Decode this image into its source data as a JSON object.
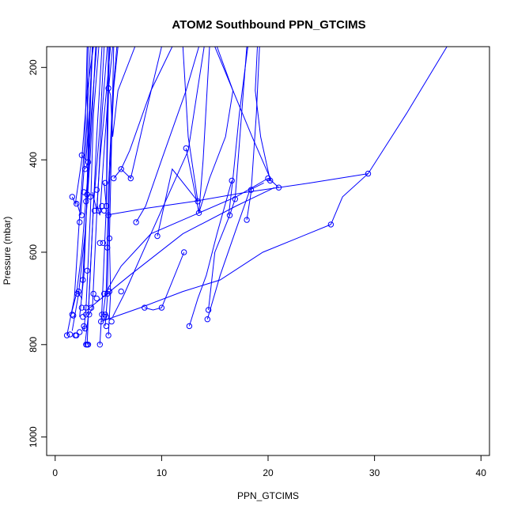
{
  "chart_data": {
    "type": "line",
    "title": "ATOM2 Southbound PPN_GTCIMS",
    "xlabel": "PPN_GTCIMS",
    "ylabel": "Pressure (mbar)",
    "xlim": [
      -0.8,
      40.8
    ],
    "ylim": [
      1040,
      155
    ],
    "y_reversed": true,
    "grid": false,
    "x_ticks": [
      {
        "value": 0,
        "label": "0"
      },
      {
        "value": 10,
        "label": "10"
      },
      {
        "value": 20,
        "label": "20"
      },
      {
        "value": 30,
        "label": "30"
      },
      {
        "value": 40,
        "label": "40"
      }
    ],
    "y_ticks": [
      {
        "value": 200,
        "label": "200"
      },
      {
        "value": 400,
        "label": "400"
      },
      {
        "value": 600,
        "label": "600"
      },
      {
        "value": 800,
        "label": "800"
      },
      {
        "value": 1000,
        "label": "1000"
      }
    ],
    "series_color": "#0000FF",
    "series": [
      {
        "x": [
          1.5,
          2.0,
          2.5,
          3.0,
          3.2,
          3.5
        ],
        "y": [
          735,
          690,
          600,
          450,
          300,
          155
        ]
      },
      {
        "x": [
          1.1,
          1.8,
          2.3,
          2.8,
          3.0
        ],
        "y": [
          780,
          700,
          520,
          350,
          155
        ]
      },
      {
        "x": [
          1.6,
          2.2,
          2.8,
          3.3,
          3.8
        ],
        "y": [
          770,
          690,
          560,
          390,
          155
        ]
      },
      {
        "x": [
          1.6,
          1.9,
          2.5,
          3.0,
          3.6
        ],
        "y": [
          480,
          495,
          400,
          250,
          155
        ]
      },
      {
        "x": [
          2.0,
          2.4,
          2.9,
          3.3
        ],
        "y": [
          490,
          520,
          360,
          155
        ]
      },
      {
        "x": [
          2.1,
          2.5,
          3.0,
          3.4,
          3.9
        ],
        "y": [
          685,
          700,
          480,
          300,
          155
        ]
      },
      {
        "x": [
          2.3,
          2.7,
          3.1,
          3.5
        ],
        "y": [
          740,
          650,
          420,
          155
        ]
      },
      {
        "x": [
          2.7,
          2.9,
          3.3,
          3.6,
          4.1
        ],
        "y": [
          770,
          720,
          520,
          300,
          155
        ]
      },
      {
        "x": [
          2.8,
          3.1,
          3.4,
          3.9,
          4.4
        ],
        "y": [
          800,
          740,
          600,
          350,
          155
        ]
      },
      {
        "x": [
          3.0,
          3.2,
          3.6,
          4.2,
          4.6
        ],
        "y": [
          800,
          690,
          500,
          330,
          155
        ]
      },
      {
        "x": [
          3.2,
          3.5,
          3.9,
          4.4,
          4.9
        ],
        "y": [
          735,
          720,
          520,
          300,
          155
        ]
      },
      {
        "x": [
          2.5,
          2.9,
          3.2,
          3.5
        ],
        "y": [
          390,
          400,
          300,
          155
        ]
      },
      {
        "x": [
          2.8,
          3.1,
          3.0,
          3.1
        ],
        "y": [
          420,
          405,
          250,
          155
        ]
      },
      {
        "x": [
          3.5,
          3.9,
          4.2,
          4.7,
          5.2
        ],
        "y": [
          470,
          510,
          400,
          280,
          155
        ]
      },
      {
        "x": [
          3.9,
          4.2,
          4.6,
          5.0,
          5.4
        ],
        "y": [
          495,
          520,
          380,
          250,
          155
        ]
      },
      {
        "x": [
          4.2,
          4.4,
          4.8,
          5.1
        ],
        "y": [
          800,
          720,
          500,
          155
        ]
      },
      {
        "x": [
          4.5,
          4.8,
          5.0,
          5.4,
          5.8
        ],
        "y": [
          735,
          680,
          460,
          260,
          155
        ]
      },
      {
        "x": [
          4.7,
          4.9,
          5.1,
          5.5,
          5.9
        ],
        "y": [
          760,
          700,
          450,
          245,
          155
        ]
      },
      {
        "x": [
          5.0,
          5.2,
          5.1,
          5.5
        ],
        "y": [
          780,
          690,
          570,
          155
        ]
      },
      {
        "x": [
          4.6,
          4.8,
          4.9,
          5.0
        ],
        "y": [
          450,
          500,
          300,
          155
        ]
      },
      {
        "x": [
          5.0,
          5.2,
          5.4,
          5.9,
          7.5
        ],
        "y": [
          245,
          260,
          350,
          250,
          155
        ]
      },
      {
        "x": [
          5.5,
          6.2,
          7.0,
          9.0,
          11.0
        ],
        "y": [
          440,
          420,
          380,
          250,
          155
        ]
      },
      {
        "x": [
          6.2,
          7.1,
          8.5,
          10.0
        ],
        "y": [
          420,
          440,
          300,
          155
        ]
      },
      {
        "x": [
          5.4,
          6.5,
          9.0,
          12.5,
          14.0
        ],
        "y": [
          740,
          690,
          560,
          380,
          155
        ]
      },
      {
        "x": [
          7.6,
          8.5,
          10.0,
          12.3,
          13.5
        ],
        "y": [
          535,
          500,
          400,
          250,
          155
        ]
      },
      {
        "x": [
          9.6,
          11.0,
          13.4,
          12.5,
          12.0
        ],
        "y": [
          565,
          420,
          490,
          350,
          155
        ]
      },
      {
        "x": [
          8.4,
          9.2,
          10.0,
          12.1
        ],
        "y": [
          720,
          725,
          720,
          600
        ]
      },
      {
        "x": [
          12.6,
          13.4,
          14.2,
          15.2,
          16.6
        ],
        "y": [
          760,
          700,
          650,
          560,
          445
        ]
      },
      {
        "x": [
          14.3,
          15.5,
          17.0,
          18.3,
          19.6
        ],
        "y": [
          745,
          650,
          550,
          465,
          450
        ]
      },
      {
        "x": [
          12.3,
          13.3,
          13.5,
          13.9,
          14.5
        ],
        "y": [
          375,
          490,
          515,
          400,
          155
        ]
      },
      {
        "x": [
          14.4,
          15.0,
          16.4,
          16.9,
          18.0
        ],
        "y": [
          725,
          600,
          520,
          485,
          155
        ]
      },
      {
        "x": [
          16.3,
          16.7,
          17.3,
          18.1
        ],
        "y": [
          520,
          440,
          300,
          155
        ]
      },
      {
        "x": [
          13.5,
          14.5,
          16.0,
          16.7,
          15.0
        ],
        "y": [
          515,
          440,
          350,
          250,
          155
        ]
      },
      {
        "x": [
          20.0,
          20.2,
          19.3,
          18.8,
          19.0
        ],
        "y": [
          440,
          445,
          350,
          250,
          155
        ]
      },
      {
        "x": [
          21.0,
          20.3,
          18.5,
          16.7,
          15.2
        ],
        "y": [
          460,
          445,
          350,
          250,
          155
        ]
      },
      {
        "x": [
          18.0,
          18.4,
          18.9,
          19.2
        ],
        "y": [
          530,
          470,
          300,
          155
        ]
      },
      {
        "x": [
          25.9,
          27.0,
          29.4,
          33.0,
          36.8
        ],
        "y": [
          540,
          480,
          430,
          300,
          155
        ]
      },
      {
        "x": [
          4.3,
          8.0,
          12.0,
          15.5,
          19.5,
          25.9
        ],
        "y": [
          750,
          720,
          685,
          660,
          600,
          540
        ]
      },
      {
        "x": [
          4.7,
          8.5,
          13.0,
          18.0,
          24.0,
          29.4
        ],
        "y": [
          520,
          505,
          490,
          470,
          450,
          430
        ]
      },
      {
        "x": [
          3.0,
          7.0,
          12.0,
          17.0,
          20.6
        ],
        "y": [
          725,
          650,
          560,
          500,
          460
        ]
      },
      {
        "x": [
          4.8,
          6.2,
          9.0,
          13.0,
          17.0,
          20.0
        ],
        "y": [
          685,
          630,
          560,
          520,
          480,
          440
        ]
      }
    ],
    "points": [
      [
        1.1,
        780
      ],
      [
        1.4,
        778
      ],
      [
        1.6,
        735
      ],
      [
        1.7,
        737
      ],
      [
        1.9,
        780
      ],
      [
        2.0,
        780
      ],
      [
        2.1,
        690
      ],
      [
        2.2,
        685
      ],
      [
        2.3,
        773
      ],
      [
        2.5,
        720
      ],
      [
        2.6,
        740
      ],
      [
        2.7,
        760
      ],
      [
        2.8,
        765
      ],
      [
        2.9,
        800
      ],
      [
        3.0,
        800
      ],
      [
        3.1,
        800
      ],
      [
        2.9,
        735
      ],
      [
        3.2,
        735
      ],
      [
        3.4,
        720
      ],
      [
        3.6,
        690
      ],
      [
        4.2,
        800
      ],
      [
        4.3,
        750
      ],
      [
        4.4,
        735
      ],
      [
        4.6,
        740
      ],
      [
        4.7,
        735
      ],
      [
        4.8,
        760
      ],
      [
        5.0,
        780
      ],
      [
        5.3,
        750
      ],
      [
        4.6,
        690
      ],
      [
        4.9,
        690
      ],
      [
        5.1,
        685
      ],
      [
        6.2,
        685
      ],
      [
        1.6,
        480
      ],
      [
        2.0,
        495
      ],
      [
        2.3,
        535
      ],
      [
        2.5,
        520
      ],
      [
        2.7,
        470
      ],
      [
        3.0,
        475
      ],
      [
        2.9,
        490
      ],
      [
        3.3,
        480
      ],
      [
        3.7,
        510
      ],
      [
        3.9,
        465
      ],
      [
        4.1,
        510
      ],
      [
        4.4,
        500
      ],
      [
        4.6,
        510
      ],
      [
        4.8,
        500
      ],
      [
        5.0,
        520
      ],
      [
        5.1,
        570
      ],
      [
        2.5,
        390
      ],
      [
        2.8,
        420
      ],
      [
        3.1,
        405
      ],
      [
        4.7,
        450
      ],
      [
        5.0,
        245
      ],
      [
        5.5,
        440
      ],
      [
        6.2,
        420
      ],
      [
        7.1,
        440
      ],
      [
        7.6,
        535
      ],
      [
        9.6,
        565
      ],
      [
        8.4,
        720
      ],
      [
        10.0,
        720
      ],
      [
        12.1,
        600
      ],
      [
        12.6,
        760
      ],
      [
        12.3,
        375
      ],
      [
        13.4,
        490
      ],
      [
        13.5,
        515
      ],
      [
        14.3,
        745
      ],
      [
        14.4,
        725
      ],
      [
        16.4,
        520
      ],
      [
        16.6,
        445
      ],
      [
        16.9,
        485
      ],
      [
        18.0,
        530
      ],
      [
        18.4,
        465
      ],
      [
        20.0,
        440
      ],
      [
        20.2,
        445
      ],
      [
        21.0,
        460
      ],
      [
        25.9,
        540
      ],
      [
        29.4,
        430
      ],
      [
        4.5,
        580
      ],
      [
        4.9,
        590
      ],
      [
        2.6,
        660
      ],
      [
        3.0,
        640
      ],
      [
        2.9,
        720
      ],
      [
        4.8,
        740
      ],
      [
        3.9,
        700
      ],
      [
        4.2,
        580
      ]
    ]
  }
}
